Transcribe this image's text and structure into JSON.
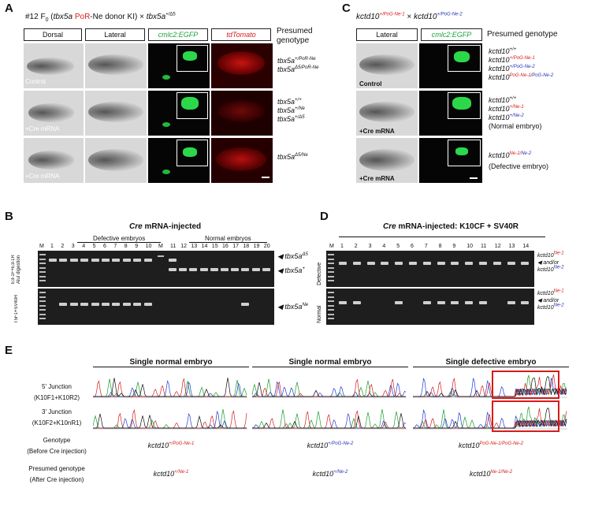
{
  "panelA": {
    "letter": "A",
    "title_prefix": "#12  F",
    "title_sub": "0",
    "title_mid1": " (",
    "title_gene": "tbx5a",
    "title_por": "PoR",
    "title_mid2": "-Ne donor KI) × ",
    "title_cross": "tbx5a",
    "title_cross_sup": "+/Δ5",
    "headers": [
      "Dorsal",
      "Lateral",
      "cmlc2:EGFP",
      "tdTomato"
    ],
    "presumed": "Presumed\ngenotype",
    "row_labels": [
      "Control",
      "+Cre mRNA",
      "+Cre mRNA"
    ],
    "genotypes": [
      [
        [
          "tbx5a",
          "+/PoR-Ne"
        ],
        [
          "tbx5a",
          "Δ5/PoR-Ne"
        ]
      ],
      [
        [
          "tbx5a",
          "+/+"
        ],
        [
          "tbx5a",
          "+/Ne"
        ],
        [
          "tbx5a",
          "+/Δ5"
        ]
      ],
      [
        [
          "tbx5a",
          "Δ5/Ne"
        ]
      ]
    ]
  },
  "panelB": {
    "letter": "B",
    "title_italic": "Cre",
    "title_rest": " mRNA-injected",
    "defective": "Defective embryos",
    "normal": "Normal embryos",
    "lane_M": "M",
    "lanes": [
      "1",
      "2",
      "3",
      "4",
      "5",
      "6",
      "7",
      "8",
      "9",
      "10",
      "11",
      "12",
      "13",
      "14",
      "15",
      "16",
      "17",
      "18",
      "19",
      "20"
    ],
    "side_top": "E3-1F+E3-1R\nAluI digestion",
    "side_bottom": "T5F1+SV40R",
    "labels": [
      [
        "tbx5a",
        "Δ5"
      ],
      [
        "tbx5a",
        "+"
      ],
      [
        "tbx5a",
        "Ne"
      ]
    ]
  },
  "panelC": {
    "letter": "C",
    "cross_a": "kctd10",
    "cross_a_sup": "+/PoG-Ne-1",
    "cross_x": " × ",
    "cross_b": "kctd10",
    "cross_b_sup": "+/PoG-Ne-2",
    "headers": [
      "Lateral",
      "cmlc2:EGFP"
    ],
    "presumed": "Presumed genotype",
    "row_labels": [
      "Control",
      "+Cre mRNA",
      "+Cre mRNA"
    ],
    "g1": [
      "kctd10+/+",
      "kctd10+/PoG-Ne-1",
      "kctd10+/PoG-Ne-2",
      "kctd10PoG-Ne-1/PoG-Ne-2"
    ],
    "g2": [
      "kctd10+/+",
      "kctd10+/Ne-1",
      "kctd10+/Ne-2"
    ],
    "g2_note": "(Normal embryo)",
    "g3": "kctd10",
    "g3_sup_a": "Ne-1/",
    "g3_sup_b": "Ne-2",
    "g3_note": "(Defective embryo)"
  },
  "panelD": {
    "letter": "D",
    "title_italic": "Cre",
    "title_rest": " mRNA-injected: K10CF + SV40R",
    "lane_M": "M",
    "lanes": [
      "1",
      "2",
      "3",
      "4",
      "5",
      "6",
      "7",
      "8",
      "9",
      "10",
      "11",
      "12",
      "13",
      "14"
    ],
    "side_top": "Defective",
    "side_bottom": "Normal",
    "label_a": "kctd10",
    "label_a_sup": "Ne-1",
    "label_mid": "and/or",
    "label_b": "kctd10",
    "label_b_sup": "Ne-2"
  },
  "panelE": {
    "letter": "E",
    "cols": [
      "Single normal embryo",
      "Single normal embryo",
      "Single defective embryo"
    ],
    "row1_label": "5' Junction",
    "row1_sub": "(K10F1+K10R2)",
    "row2_label": "3' Junction",
    "row2_sub": "(K10F2+K10nR1)",
    "genotype_label": "Genotype",
    "genotype_sub": "(Before Cre injection)",
    "presumed_label": "Presumed genotype",
    "presumed_sub": "(After Cre injection)",
    "genotypes": [
      [
        "kctd10",
        "+/PoG-Ne-1"
      ],
      [
        "kctd10",
        "+/PoG-Ne-2"
      ],
      [
        "kctd10",
        "PoG-Ne-1/PoG-Ne-2"
      ]
    ],
    "presumed": [
      [
        "kctd10",
        "+/Ne-1"
      ],
      [
        "kctd10",
        "+/Ne-2"
      ],
      [
        "kctd10",
        "Ne-1/Ne-2"
      ]
    ]
  }
}
